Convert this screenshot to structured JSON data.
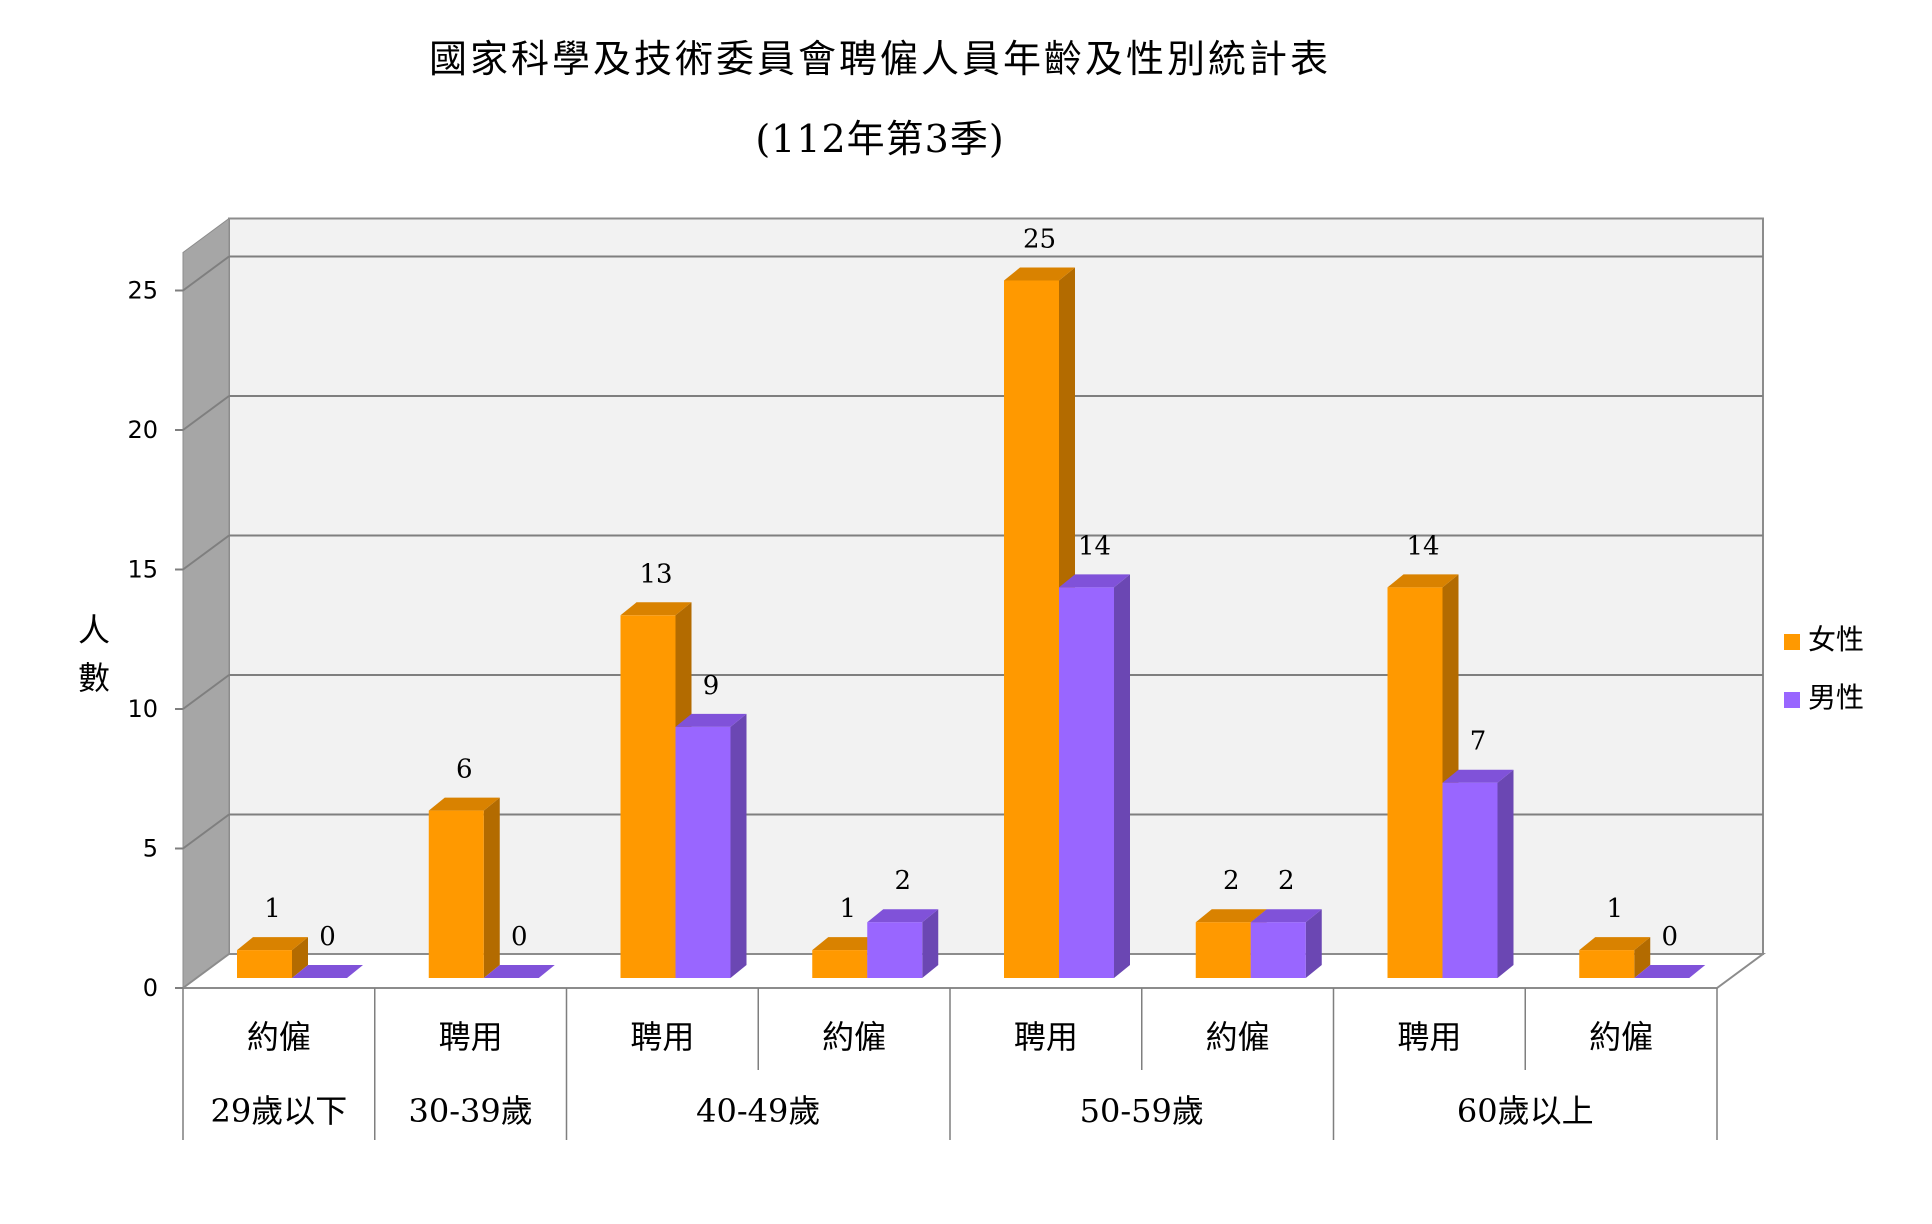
{
  "title": "國家科學及技術委員會聘僱人員年齡及性別統計表",
  "subtitle": "(112年第3季)",
  "chart_data": {
    "type": "bar",
    "title": "國家科學及技術委員會聘僱人員年齡及性別統計表",
    "subtitle": "(112年第3季)",
    "ylabel": "人數",
    "ylim": [
      0,
      25
    ],
    "yticks": [
      "0",
      "5",
      "10",
      "15",
      "20",
      "25"
    ],
    "grid": true,
    "legend_position": "right",
    "categories": [
      {
        "type": "約僱",
        "age_group": "29歲以下"
      },
      {
        "type": "聘用",
        "age_group": "30-39歲"
      },
      {
        "type": "聘用",
        "age_group": "40-49歲"
      },
      {
        "type": "約僱",
        "age_group": "40-49歲"
      },
      {
        "type": "聘用",
        "age_group": "50-59歲"
      },
      {
        "type": "約僱",
        "age_group": "50-59歲"
      },
      {
        "type": "聘用",
        "age_group": "60歲以上"
      },
      {
        "type": "約僱",
        "age_group": "60歲以上"
      }
    ],
    "age_groups": [
      "29歲以下",
      "30-39歲",
      "40-49歲",
      "50-59歲",
      "60歲以上"
    ],
    "series": [
      {
        "name": "女性",
        "color": "#FF9900",
        "values": [
          1,
          6,
          13,
          1,
          25,
          2,
          14,
          1
        ]
      },
      {
        "name": "男性",
        "color": "#9966FF",
        "values": [
          0,
          0,
          9,
          2,
          14,
          2,
          7,
          0
        ]
      }
    ]
  }
}
